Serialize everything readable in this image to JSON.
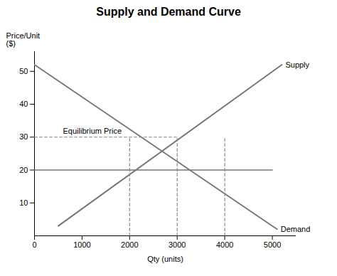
{
  "chart_data": {
    "type": "line",
    "title": "Supply and Demand Curve",
    "x_label": "Qty (units)",
    "y_label": "Price/Unit\n($)",
    "xlim": [
      0,
      5500
    ],
    "ylim": [
      0,
      56
    ],
    "xticks": [
      0,
      1000,
      2000,
      3000,
      4000,
      5000
    ],
    "yticks": [
      10,
      20,
      30,
      40,
      50
    ],
    "series": [
      {
        "name": "Supply",
        "x": [
          500,
          5200
        ],
        "values": [
          3,
          52
        ],
        "color": "#777777",
        "line_style": "solid"
      },
      {
        "name": "Demand",
        "x": [
          0,
          5100
        ],
        "values": [
          52,
          2
        ],
        "color": "#777777",
        "line_style": "solid"
      },
      {
        "name": "Equilibrium Price",
        "x": [
          0,
          3000
        ],
        "values": [
          30,
          30
        ],
        "color": "#888888",
        "line_style": "dashed"
      },
      {
        "x": [
          0,
          5000
        ],
        "values": [
          20,
          20
        ],
        "color": "#777777",
        "line_style": "solid"
      },
      {
        "x": [
          2000,
          2000
        ],
        "values": [
          0,
          30
        ],
        "color": "#888888",
        "line_style": "dashed"
      },
      {
        "x": [
          3000,
          3000
        ],
        "values": [
          0,
          30
        ],
        "color": "#888888",
        "line_style": "dashed"
      },
      {
        "x": [
          4000,
          4000
        ],
        "values": [
          0,
          30
        ],
        "color": "#888888",
        "line_style": "dashed"
      }
    ]
  }
}
